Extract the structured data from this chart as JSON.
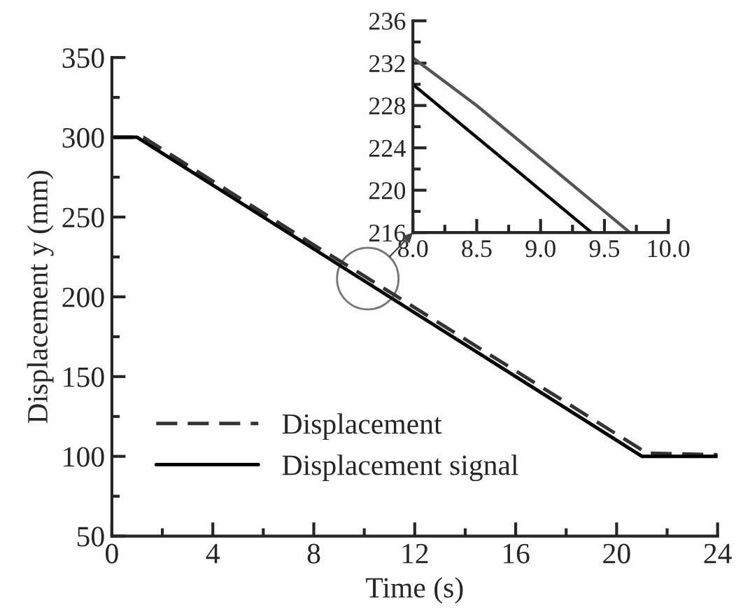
{
  "chart_data": [
    {
      "type": "line",
      "xlabel": "Time (s)",
      "ylabel": "Displacement y (mm)",
      "xlim": [
        0,
        24
      ],
      "xticks": [
        0,
        4,
        8,
        12,
        16,
        20,
        24
      ],
      "ylim": [
        50,
        350
      ],
      "yticks": [
        50,
        100,
        150,
        200,
        250,
        300,
        350
      ],
      "grid": false,
      "legend": "bottom left",
      "marker": "none",
      "series": [
        {
          "name": "Displacement",
          "color": "#333333",
          "line_style": "dashed",
          "x": [
            0,
            1.25,
            8,
            9.7,
            21.2,
            24
          ],
          "values": [
            300,
            300,
            232.5,
            216,
            102,
            101
          ]
        },
        {
          "name": "Displacement signal",
          "color": "#000000",
          "line_style": "solid",
          "x": [
            0,
            1,
            21,
            24
          ],
          "values": [
            300,
            300,
            100,
            100
          ]
        }
      ]
    },
    {
      "type": "line",
      "xlim": [
        8,
        10
      ],
      "xticks": [
        {
          "value": 8,
          "label": "8.0"
        },
        {
          "value": 8.5,
          "label": "8.5"
        },
        {
          "value": 9,
          "label": "9.0"
        },
        {
          "value": 9.5,
          "label": "9.5"
        },
        {
          "value": 10,
          "label": "10.0"
        }
      ],
      "ylim": [
        216,
        236
      ],
      "yticks": [
        216,
        220,
        224,
        228,
        232,
        236
      ],
      "grid": false,
      "legend": false,
      "marker": "none",
      "series": [
        {
          "color": "#555555",
          "line_style": "solid",
          "x": [
            8,
            8.5,
            9,
            9.5,
            9.7
          ],
          "values": [
            232.5,
            228,
            223,
            218,
            216
          ]
        },
        {
          "color": "#000000",
          "line_style": "solid",
          "x": [
            8,
            9.4
          ],
          "values": [
            230,
            216
          ]
        }
      ]
    }
  ]
}
